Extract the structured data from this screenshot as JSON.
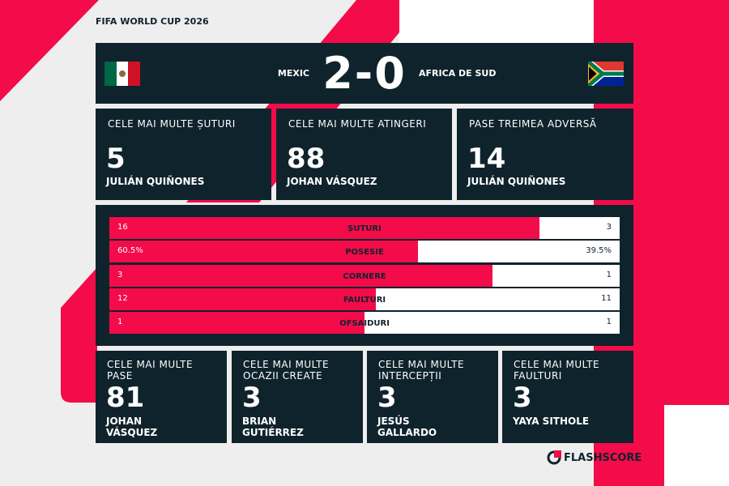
{
  "header": {
    "title": "FIFA WORLD CUP 2026"
  },
  "match": {
    "home": "MEXIC",
    "score": "2-0",
    "away": "AFRICA DE SUD"
  },
  "top_stats": [
    {
      "label": "CELE MAI MULTE ȘUTURI",
      "value": 5,
      "player": "JULIÁN QUIÑONES"
    },
    {
      "label": "CELE MAI MULTE ATINGERI",
      "value": 88,
      "player": "JOHAN VÁSQUEZ"
    },
    {
      "label": "PASE TREIMEA ADVERSĂ",
      "value": 14,
      "player": "JULIÁN QUIÑONES"
    }
  ],
  "comparison": {
    "rows": [
      {
        "label": "ȘUTURI",
        "home": 16,
        "away": 3
      },
      {
        "label": "POSESIE",
        "home": {
          "value": 60.5,
          "label": "60.5%"
        },
        "away": {
          "value": 39.5,
          "label": "39.5%"
        }
      },
      {
        "label": "CORNERE",
        "home": 3,
        "away": 1
      },
      {
        "label": "FAULTURI",
        "home": 12,
        "away": 11
      },
      {
        "label": "OFSAIDURI",
        "home": 1,
        "away": 1
      }
    ]
  },
  "bottom_stats": [
    {
      "label": "CELE MAI MULTE PASE",
      "value": 81,
      "player": "JOHAN VÁSQUEZ"
    },
    {
      "label": "CELE MAI MULTE OCAZII CREATE",
      "value": 3,
      "player": "BRIAN GUTIÉRREZ"
    },
    {
      "label": "CELE MAI MULTE INTERCEPȚII",
      "value": 3,
      "player": "JESÚS GALLARDO"
    },
    {
      "label": "CELE MAI MULTE FAULTURI",
      "value": 3,
      "player": "YAYA SITHOLE"
    }
  ],
  "footer": {
    "brand": "FLASHSCORE"
  }
}
